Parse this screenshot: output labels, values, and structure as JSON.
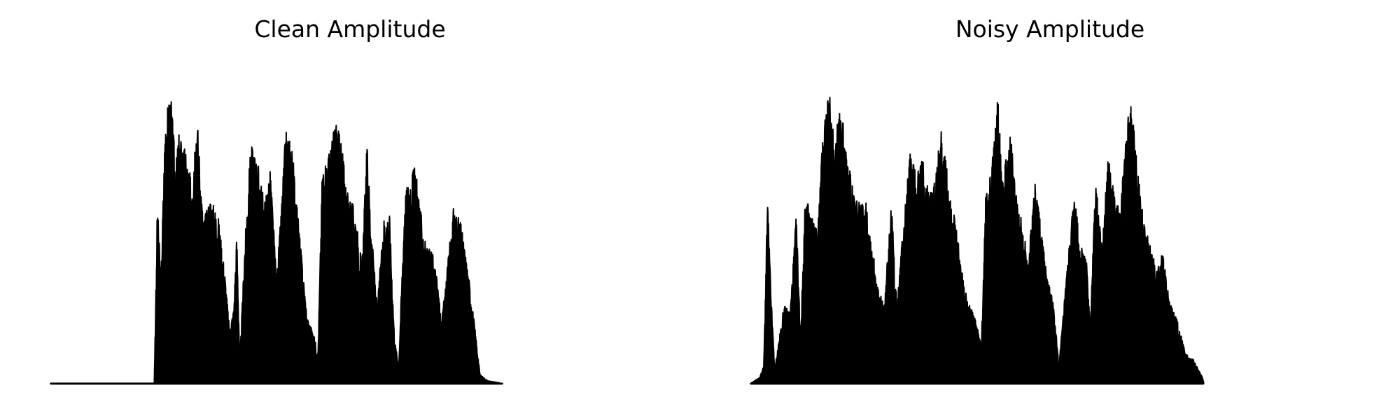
{
  "chart_data": [
    {
      "type": "line",
      "title": "Clean Amplitude",
      "axis": "off",
      "grid": false,
      "line_color": "#000000",
      "ylim": [
        0,
        1.05
      ],
      "x_range": [
        0,
        1
      ],
      "envelope": [
        [
          0.0,
          0.0
        ],
        [
          0.17,
          0.0
        ],
        [
          0.175,
          0.6
        ],
        [
          0.181,
          0.35
        ],
        [
          0.188,
          0.89
        ],
        [
          0.197,
          0.96
        ],
        [
          0.205,
          0.72
        ],
        [
          0.21,
          0.83
        ],
        [
          0.22,
          0.78
        ],
        [
          0.23,
          0.68
        ],
        [
          0.24,
          0.9
        ],
        [
          0.25,
          0.54
        ],
        [
          0.262,
          0.62
        ],
        [
          0.275,
          0.55
        ],
        [
          0.285,
          0.38
        ],
        [
          0.293,
          0.18
        ],
        [
          0.3,
          0.25
        ],
        [
          0.305,
          0.5
        ],
        [
          0.31,
          0.07
        ],
        [
          0.318,
          0.46
        ],
        [
          0.328,
          0.8
        ],
        [
          0.34,
          0.73
        ],
        [
          0.35,
          0.6
        ],
        [
          0.36,
          0.71
        ],
        [
          0.37,
          0.35
        ],
        [
          0.377,
          0.55
        ],
        [
          0.385,
          0.84
        ],
        [
          0.395,
          0.8
        ],
        [
          0.405,
          0.56
        ],
        [
          0.42,
          0.22
        ],
        [
          0.43,
          0.17
        ],
        [
          0.438,
          0.1
        ],
        [
          0.445,
          0.72
        ],
        [
          0.457,
          0.77
        ],
        [
          0.467,
          0.88
        ],
        [
          0.478,
          0.78
        ],
        [
          0.485,
          0.64
        ],
        [
          0.498,
          0.58
        ],
        [
          0.51,
          0.4
        ],
        [
          0.518,
          0.8
        ],
        [
          0.525,
          0.52
        ],
        [
          0.535,
          0.25
        ],
        [
          0.545,
          0.55
        ],
        [
          0.555,
          0.56
        ],
        [
          0.563,
          0.15
        ],
        [
          0.57,
          0.06
        ],
        [
          0.58,
          0.63
        ],
        [
          0.59,
          0.7
        ],
        [
          0.598,
          0.72
        ],
        [
          0.606,
          0.57
        ],
        [
          0.615,
          0.45
        ],
        [
          0.625,
          0.44
        ],
        [
          0.633,
          0.35
        ],
        [
          0.64,
          0.2
        ],
        [
          0.65,
          0.4
        ],
        [
          0.66,
          0.59
        ],
        [
          0.672,
          0.53
        ],
        [
          0.685,
          0.35
        ],
        [
          0.695,
          0.18
        ],
        [
          0.703,
          0.03
        ],
        [
          0.715,
          0.01
        ],
        [
          0.74,
          0.0
        ]
      ]
    },
    {
      "type": "line",
      "title": "Noisy Amplitude",
      "axis": "off",
      "grid": false,
      "line_color": "#000000",
      "ylim": [
        0,
        1.05
      ],
      "x_range": [
        0,
        1
      ],
      "envelope": [
        [
          0.0,
          0.0
        ],
        [
          0.015,
          0.02
        ],
        [
          0.022,
          0.06
        ],
        [
          0.028,
          0.62
        ],
        [
          0.034,
          0.28
        ],
        [
          0.04,
          0.05
        ],
        [
          0.055,
          0.26
        ],
        [
          0.065,
          0.24
        ],
        [
          0.075,
          0.56
        ],
        [
          0.082,
          0.16
        ],
        [
          0.09,
          0.63
        ],
        [
          0.1,
          0.56
        ],
        [
          0.11,
          0.51
        ],
        [
          0.12,
          0.89
        ],
        [
          0.13,
          0.96
        ],
        [
          0.138,
          0.82
        ],
        [
          0.148,
          0.92
        ],
        [
          0.158,
          0.77
        ],
        [
          0.168,
          0.64
        ],
        [
          0.178,
          0.6
        ],
        [
          0.19,
          0.6
        ],
        [
          0.2,
          0.45
        ],
        [
          0.21,
          0.3
        ],
        [
          0.22,
          0.27
        ],
        [
          0.23,
          0.62
        ],
        [
          0.24,
          0.26
        ],
        [
          0.25,
          0.53
        ],
        [
          0.262,
          0.78
        ],
        [
          0.272,
          0.7
        ],
        [
          0.282,
          0.75
        ],
        [
          0.292,
          0.64
        ],
        [
          0.302,
          0.67
        ],
        [
          0.312,
          0.85
        ],
        [
          0.325,
          0.66
        ],
        [
          0.338,
          0.5
        ],
        [
          0.35,
          0.32
        ],
        [
          0.36,
          0.26
        ],
        [
          0.37,
          0.2
        ],
        [
          0.378,
          0.13
        ],
        [
          0.385,
          0.62
        ],
        [
          0.395,
          0.72
        ],
        [
          0.405,
          0.96
        ],
        [
          0.414,
          0.69
        ],
        [
          0.425,
          0.84
        ],
        [
          0.435,
          0.63
        ],
        [
          0.445,
          0.53
        ],
        [
          0.455,
          0.42
        ],
        [
          0.466,
          0.68
        ],
        [
          0.475,
          0.54
        ],
        [
          0.485,
          0.36
        ],
        [
          0.495,
          0.28
        ],
        [
          0.505,
          0.06
        ],
        [
          0.52,
          0.42
        ],
        [
          0.53,
          0.63
        ],
        [
          0.54,
          0.46
        ],
        [
          0.55,
          0.41
        ],
        [
          0.556,
          0.2
        ],
        [
          0.565,
          0.68
        ],
        [
          0.575,
          0.45
        ],
        [
          0.585,
          0.76
        ],
        [
          0.595,
          0.64
        ],
        [
          0.605,
          0.56
        ],
        [
          0.615,
          0.84
        ],
        [
          0.624,
          0.96
        ],
        [
          0.633,
          0.72
        ],
        [
          0.645,
          0.54
        ],
        [
          0.655,
          0.46
        ],
        [
          0.665,
          0.38
        ],
        [
          0.675,
          0.44
        ],
        [
          0.685,
          0.28
        ],
        [
          0.7,
          0.2
        ],
        [
          0.712,
          0.1
        ],
        [
          0.725,
          0.08
        ],
        [
          0.74,
          0.02
        ],
        [
          0.742,
          0.0
        ]
      ]
    }
  ]
}
